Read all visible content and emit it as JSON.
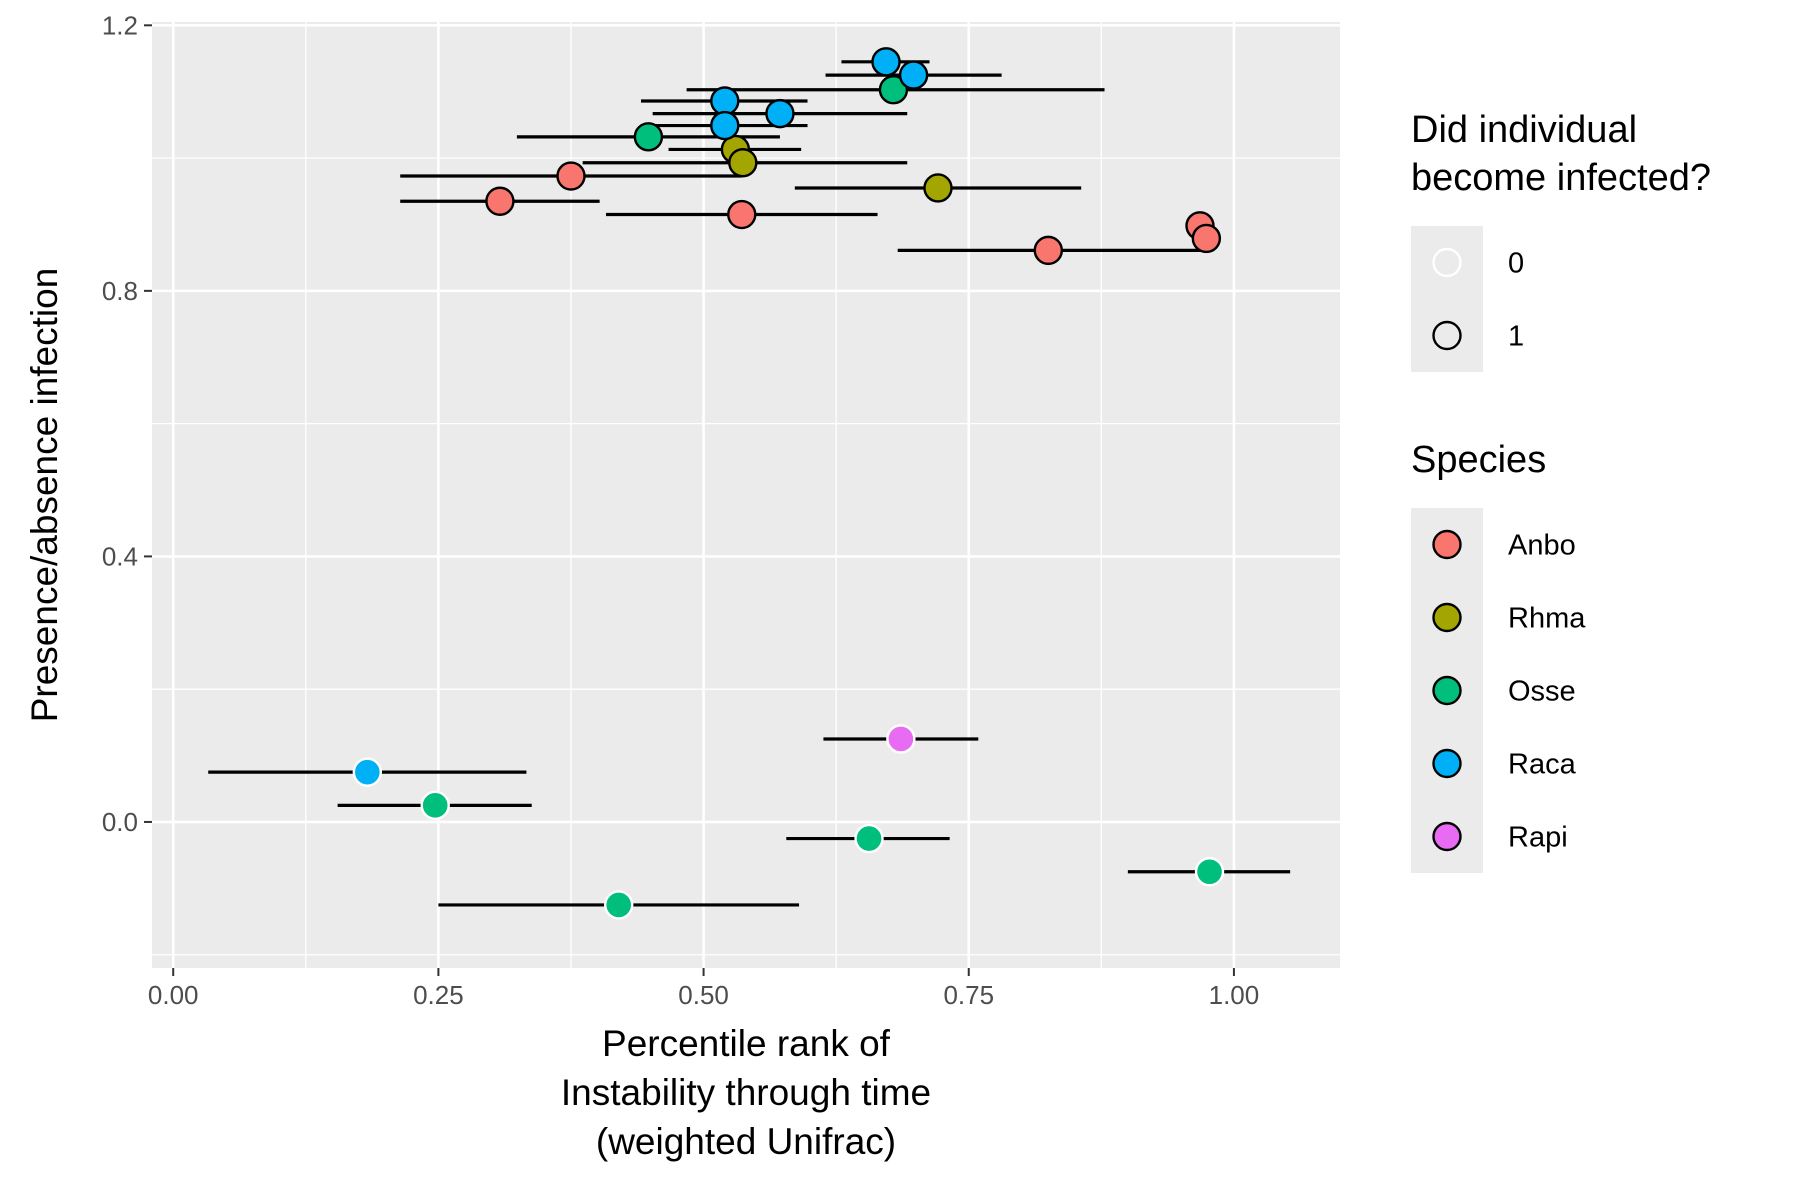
{
  "chart_data": {
    "type": "scatter",
    "xlabel": [
      "Percentile rank of",
      "Instability through time",
      "(weighted Unifrac)"
    ],
    "ylabel": "Presence/absence infection",
    "xlim": [
      -0.02,
      1.1
    ],
    "ylim": [
      -0.22,
      1.205
    ],
    "x_ticks": [
      0.0,
      0.25,
      0.5,
      0.75,
      1.0
    ],
    "x_tick_labels": [
      "0.00",
      "0.25",
      "0.50",
      "0.75",
      "1.00"
    ],
    "y_ticks": [
      0.0,
      0.4,
      0.8,
      1.2
    ],
    "y_tick_labels": [
      "0.0",
      "0.4",
      "0.8",
      "1.2"
    ],
    "grid": true,
    "legend_position": "right",
    "legends": [
      {
        "title": [
          "Did individual",
          "become infected?"
        ],
        "entries": [
          {
            "label": "0",
            "outline": "#ffffff"
          },
          {
            "label": "1",
            "outline": "#000000"
          }
        ]
      },
      {
        "title": [
          "Species"
        ],
        "entries": [
          {
            "label": "Anbo",
            "color": "#F8766D"
          },
          {
            "label": "Rhma",
            "color": "#A3A500"
          },
          {
            "label": "Osse",
            "color": "#00BF7D"
          },
          {
            "label": "Raca",
            "color": "#00B0F6"
          },
          {
            "label": "Rapi",
            "color": "#E76BF3"
          }
        ]
      }
    ],
    "colors": {
      "Anbo": "#F8766D",
      "Rhma": "#A3A500",
      "Osse": "#00BF7D",
      "Raca": "#00B0F6",
      "Rapi": "#E76BF3"
    },
    "points": [
      {
        "species": "Anbo",
        "infected": 1,
        "x": 0.308,
        "y": 0.935,
        "xmin": 0.214,
        "xmax": 0.402
      },
      {
        "species": "Anbo",
        "infected": 1,
        "x": 0.375,
        "y": 0.973,
        "xmin": 0.214,
        "xmax": 0.536
      },
      {
        "species": "Anbo",
        "infected": 1,
        "x": 0.536,
        "y": 0.915,
        "xmin": 0.408,
        "xmax": 0.664
      },
      {
        "species": "Anbo",
        "infected": 1,
        "x": 0.825,
        "y": 0.861,
        "xmin": 0.683,
        "xmax": 0.975
      },
      {
        "species": "Anbo",
        "infected": 1,
        "x": 0.968,
        "y": 0.898,
        "xmin": 0.968,
        "xmax": 0.968
      },
      {
        "species": "Anbo",
        "infected": 1,
        "x": 0.974,
        "y": 0.879,
        "xmin": 0.974,
        "xmax": 0.974
      },
      {
        "species": "Rhma",
        "infected": 1,
        "x": 0.53,
        "y": 1.013,
        "xmin": 0.467,
        "xmax": 0.592
      },
      {
        "species": "Rhma",
        "infected": 1,
        "x": 0.537,
        "y": 0.993,
        "xmin": 0.386,
        "xmax": 0.692
      },
      {
        "species": "Rhma",
        "infected": 1,
        "x": 0.721,
        "y": 0.955,
        "xmin": 0.586,
        "xmax": 0.856
      },
      {
        "species": "Osse",
        "infected": 1,
        "x": 0.448,
        "y": 1.032,
        "xmin": 0.324,
        "xmax": 0.572
      },
      {
        "species": "Osse",
        "infected": 1,
        "x": 0.679,
        "y": 1.103,
        "xmin": 0.484,
        "xmax": 0.878
      },
      {
        "species": "Osse",
        "infected": 0,
        "x": 0.247,
        "y": 0.025,
        "xmin": 0.155,
        "xmax": 0.338
      },
      {
        "species": "Osse",
        "infected": 0,
        "x": 0.656,
        "y": -0.025,
        "xmin": 0.578,
        "xmax": 0.732
      },
      {
        "species": "Osse",
        "infected": 0,
        "x": 0.977,
        "y": -0.075,
        "xmin": 0.9,
        "xmax": 1.053
      },
      {
        "species": "Osse",
        "infected": 0,
        "x": 0.42,
        "y": -0.125,
        "xmin": 0.25,
        "xmax": 0.59
      },
      {
        "species": "Raca",
        "infected": 1,
        "x": 0.52,
        "y": 1.086,
        "xmin": 0.441,
        "xmax": 0.598
      },
      {
        "species": "Raca",
        "infected": 1,
        "x": 0.52,
        "y": 1.049,
        "xmin": 0.441,
        "xmax": 0.598
      },
      {
        "species": "Raca",
        "infected": 1,
        "x": 0.572,
        "y": 1.067,
        "xmin": 0.452,
        "xmax": 0.692
      },
      {
        "species": "Raca",
        "infected": 1,
        "x": 0.672,
        "y": 1.145,
        "xmin": 0.63,
        "xmax": 0.713
      },
      {
        "species": "Raca",
        "infected": 1,
        "x": 0.698,
        "y": 1.125,
        "xmin": 0.615,
        "xmax": 0.781
      },
      {
        "species": "Raca",
        "infected": 0,
        "x": 0.183,
        "y": 0.075,
        "xmin": 0.033,
        "xmax": 0.333
      },
      {
        "species": "Rapi",
        "infected": 0,
        "x": 0.686,
        "y": 0.125,
        "xmin": 0.613,
        "xmax": 0.759
      }
    ]
  }
}
